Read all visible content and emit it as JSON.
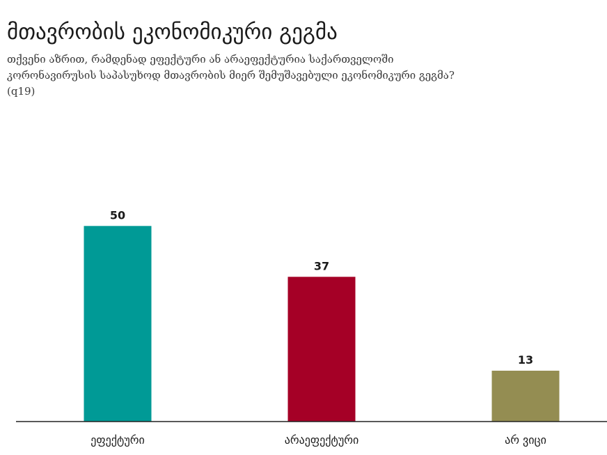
{
  "chart_data": {
    "type": "bar",
    "title": "მთავრობის ეკონომიკური გეგმა",
    "subtitle_lines": [
      "თქვენი აზრით, რამდენად ეფექტური ან არაეფექტურია საქართველოში",
      "კორონავირუსის საპასუხოდ  მთავრობის მიერ შემუშავებული ეკონომიკური გეგმა?",
      "(q19)"
    ],
    "categories": [
      "ეფექტური",
      "არაეფექტური",
      "არ ვიცი"
    ],
    "values": [
      50,
      37,
      13
    ],
    "colors": [
      "#009a96",
      "#a50026",
      "#948d52"
    ],
    "ylim": [
      0,
      57
    ],
    "grid": false,
    "xlabel": "",
    "ylabel": ""
  }
}
